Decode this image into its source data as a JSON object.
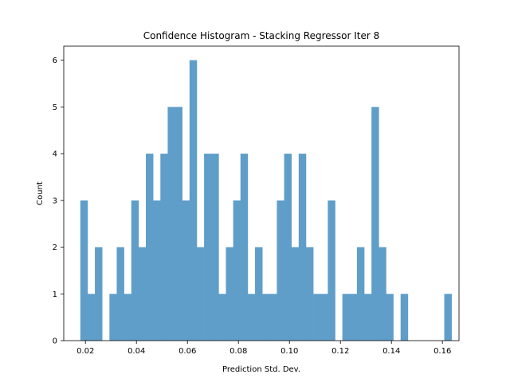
{
  "chart_data": {
    "type": "bar",
    "title": "Confidence Histogram - Stacking Regressor Iter 8",
    "xlabel": "Prediction Std. Dev.",
    "ylabel": "Count",
    "xlim": [
      0.0115,
      0.1665
    ],
    "ylim": [
      0,
      6.3
    ],
    "x_ticks": [
      0.02,
      0.04,
      0.06,
      0.08,
      0.1,
      0.12,
      0.14,
      0.16
    ],
    "x_tick_labels": [
      "0.02",
      "0.04",
      "0.06",
      "0.08",
      "0.10",
      "0.12",
      "0.14",
      "0.16"
    ],
    "y_ticks": [
      0,
      1,
      2,
      3,
      4,
      5,
      6
    ],
    "y_tick_labels": [
      "0",
      "1",
      "2",
      "3",
      "4",
      "5",
      "6"
    ],
    "bin_start": 0.018,
    "bin_width": 0.0028545,
    "counts": [
      3,
      1,
      2,
      0,
      1,
      2,
      1,
      3,
      2,
      4,
      3,
      4,
      5,
      5,
      3,
      6,
      2,
      4,
      4,
      1,
      2,
      3,
      4,
      1,
      2,
      1,
      1,
      3,
      4,
      2,
      4,
      2,
      1,
      1,
      3,
      0,
      1,
      1,
      2,
      1,
      5,
      2,
      1,
      0,
      1,
      0,
      0,
      0,
      0,
      0,
      1
    ],
    "bar_color": "#5f9ec9",
    "grid": false
  }
}
